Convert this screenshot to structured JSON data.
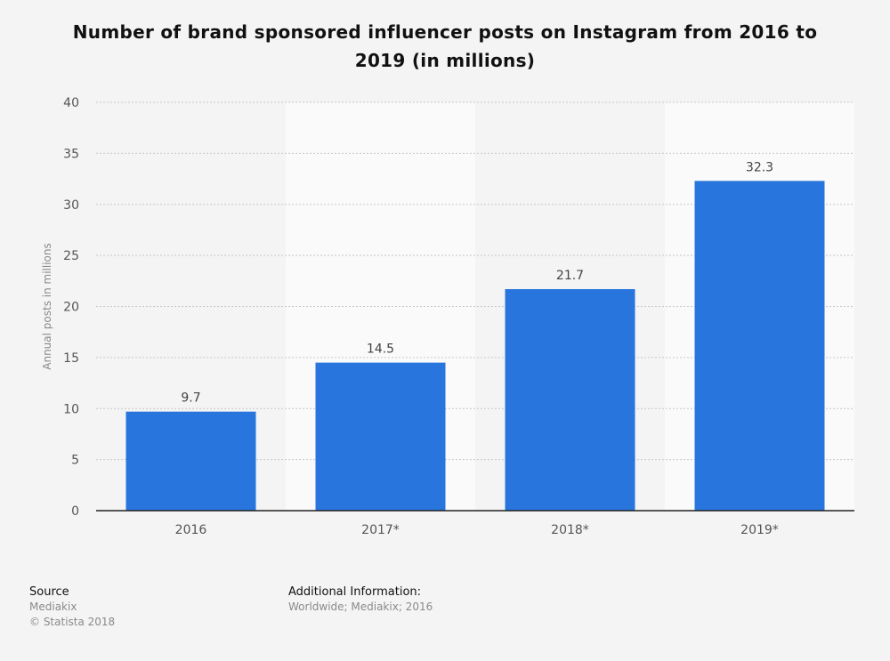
{
  "chart_data": {
    "type": "bar",
    "title": "Number of brand sponsored influencer posts on Instagram from 2016 to 2019 (in millions)",
    "categories": [
      "2016",
      "2017*",
      "2018*",
      "2019*"
    ],
    "values": [
      9.7,
      14.5,
      21.7,
      32.3
    ],
    "xlabel": "",
    "ylabel": "Annual posts in millions",
    "ylim": [
      0,
      40
    ],
    "yticks": [
      0,
      5,
      10,
      15,
      20,
      25,
      30,
      35,
      40
    ],
    "grid": true,
    "bar_color": "#2876dd"
  },
  "footer": {
    "source_label": "Source",
    "source_value": "Mediakix",
    "copyright": "© Statista 2018",
    "additional_label": "Additional Information:",
    "additional_value": "Worldwide; Mediakix; 2016"
  }
}
